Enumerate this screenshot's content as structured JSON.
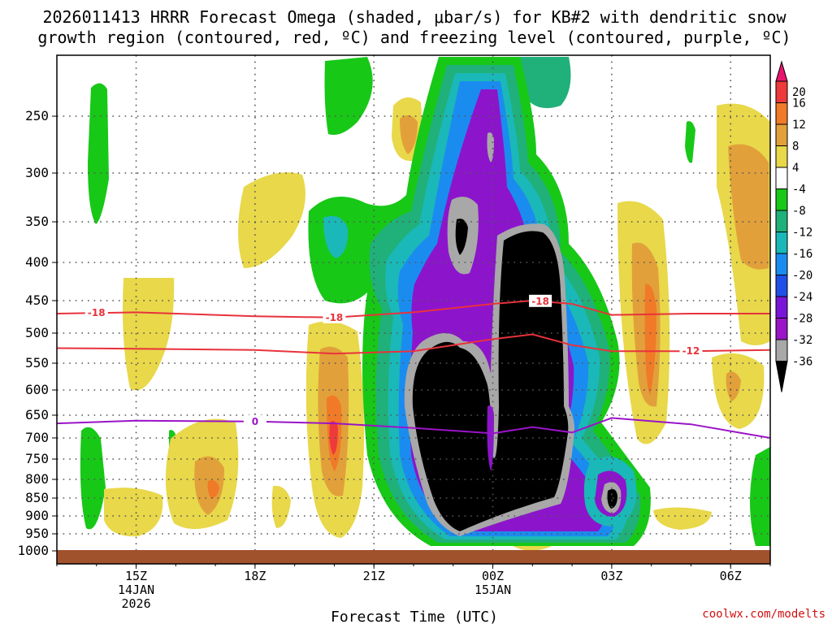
{
  "chart_data": {
    "type": "heatmap",
    "title_lines": [
      "2026011413 HRRR Forecast Omega (shaded, μbar/s) for KB#2 with dendritic snow",
      "growth region (contoured, red, ºC) and freezing level (contoured, purple, ºC)"
    ],
    "xlabel": "Forecast Time (UTC)",
    "credit": "coolwx.com/modelts",
    "x_ticks": [
      {
        "hour": 15,
        "lines": [
          "15Z",
          "14JAN",
          "2026"
        ]
      },
      {
        "hour": 18,
        "lines": [
          "18Z"
        ]
      },
      {
        "hour": 21,
        "lines": [
          "21Z"
        ]
      },
      {
        "hour": 24,
        "lines": [
          "00Z",
          "15JAN"
        ]
      },
      {
        "hour": 27,
        "lines": [
          "03Z"
        ]
      },
      {
        "hour": 30,
        "lines": [
          "06Z"
        ]
      }
    ],
    "xlim_hours": [
      13,
      31
    ],
    "y_axis": "pressure (mb)",
    "y_ticks": [
      250,
      300,
      350,
      400,
      450,
      500,
      550,
      600,
      650,
      700,
      750,
      800,
      850,
      900,
      950,
      1000
    ],
    "ylim_mb": [
      200,
      1020
    ],
    "colorbar": {
      "levels": [
        20,
        16,
        12,
        8,
        4,
        -4,
        -8,
        -12,
        -16,
        -20,
        -24,
        -28,
        -32,
        -36
      ],
      "colors": [
        "#e8156e",
        "#ee3a3a",
        "#f07a28",
        "#e2a03a",
        "#e8d84a",
        "#ffffff",
        "#17c817",
        "#20b07a",
        "#1ab8b8",
        "#1a8cf0",
        "#2050e8",
        "#7a16d8",
        "#9a14c8",
        "#a8a8a8",
        "#000000"
      ]
    },
    "omega_regions": [
      {
        "name": "strong-ascent-core-black",
        "value_range": "< -36",
        "color": "#000000"
      },
      {
        "name": "ascent-gray",
        "value_range": "-36 to -32",
        "color": "#a8a8a8"
      },
      {
        "name": "ascent-purple",
        "value_range": "-32 to -24",
        "color": "#8c15cc"
      },
      {
        "name": "ascent-blue",
        "value_range": "-24 to -16",
        "color": "#1a7ae8"
      },
      {
        "name": "ascent-green",
        "value_range": "-8 to -4",
        "color": "#17c817"
      },
      {
        "name": "descent-yellow",
        "value_range": "4 to 8",
        "color": "#e8d84a"
      },
      {
        "name": "descent-orange",
        "value_range": "8 to 16",
        "color": "#f07a28"
      }
    ],
    "contours": [
      {
        "name": "dgz-upper",
        "label": "-18",
        "color": "#e8323c",
        "points": [
          [
            13,
            470
          ],
          [
            15,
            468
          ],
          [
            18,
            474
          ],
          [
            20,
            476
          ],
          [
            22,
            468
          ],
          [
            24,
            455
          ],
          [
            25,
            450
          ],
          [
            26,
            455
          ],
          [
            27,
            472
          ],
          [
            29,
            470
          ],
          [
            31,
            470
          ]
        ]
      },
      {
        "name": "dgz-lower",
        "label": "-12",
        "color": "#e8323c",
        "points": [
          [
            13,
            525
          ],
          [
            15,
            526
          ],
          [
            18,
            528
          ],
          [
            20,
            534
          ],
          [
            22,
            530
          ],
          [
            24,
            510
          ],
          [
            25,
            502
          ],
          [
            26,
            520
          ],
          [
            27,
            530
          ],
          [
            29,
            530
          ],
          [
            31,
            528
          ]
        ]
      },
      {
        "name": "freezing-level",
        "label": "0",
        "color": "#9a14c8",
        "points": [
          [
            13,
            668
          ],
          [
            15,
            662
          ],
          [
            18,
            664
          ],
          [
            20,
            668
          ],
          [
            22,
            678
          ],
          [
            24,
            690
          ],
          [
            25,
            676
          ],
          [
            26,
            688
          ],
          [
            27,
            656
          ],
          [
            29,
            670
          ],
          [
            31,
            700
          ]
        ]
      }
    ],
    "terrain_color": "#a0522d"
  }
}
